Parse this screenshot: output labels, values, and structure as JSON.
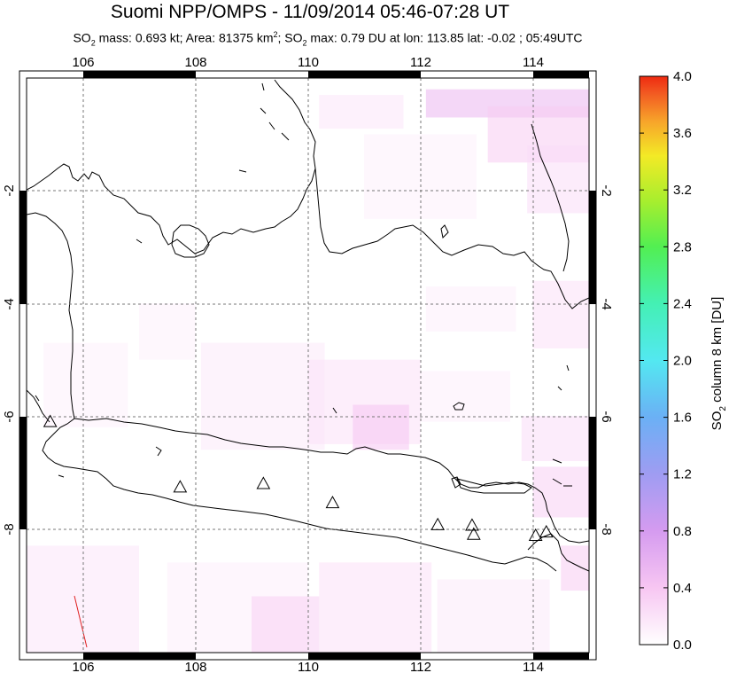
{
  "title": "Suomi NPP/OMPS - 11/09/2014 05:46-07:28 UT",
  "subtitle": {
    "p1": "SO",
    "p1_sub": "2",
    "p2": " mass: 0.693 kt; Area: 81375 km",
    "p2_sup": "2",
    "p3": "; SO",
    "p3_sub": "2",
    "p4": " max: 0.79 DU at lon: 113.85 lat: -0.02 ; 05:49UTC"
  },
  "map": {
    "lon_ticks": [
      "106",
      "108",
      "110",
      "112",
      "114"
    ],
    "lat_ticks": [
      "-2",
      "-4",
      "-6",
      "-8"
    ],
    "lon_range": [
      105,
      115
    ],
    "lat_range": [
      -10.2,
      0
    ]
  },
  "colorbar": {
    "label": "SO2 column 8 km [DU]",
    "label_parts": {
      "a": "SO",
      "b": "2",
      "c": " column 8 km [DU]"
    },
    "ticks": [
      "0.0",
      "0.4",
      "0.8",
      "1.2",
      "1.6",
      "2.0",
      "2.4",
      "2.8",
      "3.2",
      "3.6",
      "4.0"
    ],
    "range": [
      0,
      4
    ],
    "colors": [
      "#ffffff",
      "#f7c6f2",
      "#d59bf0",
      "#9f9cf2",
      "#6bb0f5",
      "#53e8f1",
      "#44f0b4",
      "#52ef52",
      "#a7ee2e",
      "#f3ea26",
      "#f7a52a",
      "#f25a22",
      "#ee2a10"
    ]
  },
  "volcanoes": [
    {
      "lon": 105.42,
      "lat": -6.1
    },
    {
      "lon": 107.73,
      "lat": -7.26
    },
    {
      "lon": 109.21,
      "lat": -7.2
    },
    {
      "lon": 110.44,
      "lat": -7.54
    },
    {
      "lon": 112.31,
      "lat": -7.93
    },
    {
      "lon": 112.92,
      "lat": -7.94
    },
    {
      "lon": 112.95,
      "lat": -8.1
    },
    {
      "lon": 114.05,
      "lat": -8.12
    },
    {
      "lon": 114.24,
      "lat": -8.06
    }
  ],
  "so2_cells": [
    {
      "lon": 110.2,
      "lat": -0.3,
      "w": 1.5,
      "h": 0.6,
      "v": 0.15
    },
    {
      "lon": 112.1,
      "lat": -0.2,
      "w": 2.9,
      "h": 0.5,
      "v": 0.45
    },
    {
      "lon": 113.2,
      "lat": -0.5,
      "w": 1.8,
      "h": 1.0,
      "v": 0.3
    },
    {
      "lon": 111.0,
      "lat": -1.0,
      "w": 2.0,
      "h": 1.5,
      "v": 0.08
    },
    {
      "lon": 113.9,
      "lat": -1.2,
      "w": 1.1,
      "h": 1.2,
      "v": 0.2
    },
    {
      "lon": 114.0,
      "lat": -3.6,
      "w": 1.0,
      "h": 1.2,
      "v": 0.18
    },
    {
      "lon": 112.1,
      "lat": -3.7,
      "w": 1.6,
      "h": 0.8,
      "v": 0.1
    },
    {
      "lon": 105.3,
      "lat": -4.7,
      "w": 1.5,
      "h": 1.5,
      "v": 0.08
    },
    {
      "lon": 107.0,
      "lat": -4.0,
      "w": 1.0,
      "h": 1.0,
      "v": 0.08
    },
    {
      "lon": 108.1,
      "lat": -4.7,
      "w": 2.2,
      "h": 1.9,
      "v": 0.12
    },
    {
      "lon": 110.0,
      "lat": -5.0,
      "w": 2.0,
      "h": 1.5,
      "v": 0.18
    },
    {
      "lon": 110.8,
      "lat": -5.8,
      "w": 1.0,
      "h": 0.8,
      "v": 0.35
    },
    {
      "lon": 112.0,
      "lat": -5.2,
      "w": 1.6,
      "h": 0.9,
      "v": 0.1
    },
    {
      "lon": 113.8,
      "lat": -6.0,
      "w": 1.2,
      "h": 0.8,
      "v": 0.2
    },
    {
      "lon": 114.0,
      "lat": -6.9,
      "w": 1.0,
      "h": 0.9,
      "v": 0.28
    },
    {
      "lon": 114.5,
      "lat": -8.3,
      "w": 0.5,
      "h": 0.8,
      "v": 0.3
    },
    {
      "lon": 105.0,
      "lat": -8.3,
      "w": 2.0,
      "h": 1.9,
      "v": 0.15
    },
    {
      "lon": 107.5,
      "lat": -8.6,
      "w": 2.5,
      "h": 1.6,
      "v": 0.1
    },
    {
      "lon": 110.2,
      "lat": -8.6,
      "w": 2.0,
      "h": 1.6,
      "v": 0.18
    },
    {
      "lon": 112.3,
      "lat": -8.9,
      "w": 2.0,
      "h": 1.3,
      "v": 0.12
    },
    {
      "lon": 109.0,
      "lat": -9.2,
      "w": 1.2,
      "h": 1.0,
      "v": 0.28
    }
  ]
}
